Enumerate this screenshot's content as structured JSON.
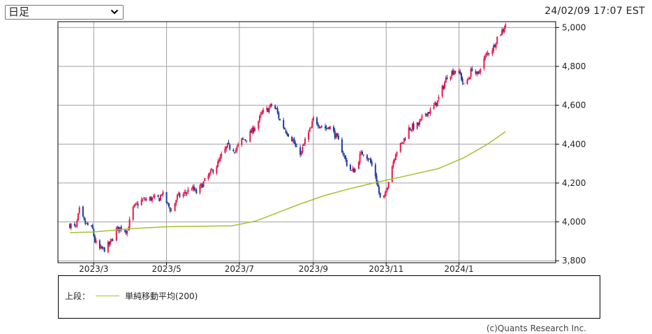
{
  "controls": {
    "period_select": {
      "value": "日足",
      "icon": "chevron-down-icon"
    }
  },
  "timestamp": "24/02/09 17:07 EST",
  "credit": "(c)Quants Research Inc.",
  "legend": {
    "section_label": "上段：",
    "ma_label": "単純移動平均(200)"
  },
  "colors": {
    "up": "#e8194b",
    "down": "#1c3d9c",
    "ma": "#a3c231",
    "grid": "#a0a0a0",
    "frame": "#000000"
  },
  "chart_data": {
    "type": "candlestick",
    "x_tick_labels": [
      "2023/3",
      "2023/5",
      "2023/7",
      "2023/9",
      "2023/11",
      "2024/1"
    ],
    "y_tick_labels": [
      "3,800",
      "4,000",
      "4,200",
      "4,400",
      "4,600",
      "4,800",
      "5,000"
    ],
    "y_ticks": [
      3800,
      4000,
      4200,
      4400,
      4600,
      4800,
      5000
    ],
    "ylim": [
      3790,
      5030
    ],
    "xlim": [
      "2023-01-30",
      "2024-03-22"
    ],
    "grid": true,
    "close_path": [
      [
        "2023-02-09",
        3985
      ],
      [
        "2023-02-14",
        3970
      ],
      [
        "2023-02-17",
        4060
      ],
      [
        "2023-02-21",
        3998
      ],
      [
        "2023-02-28",
        3960
      ],
      [
        "2023-03-02",
        3900
      ],
      [
        "2023-03-06",
        3860
      ],
      [
        "2023-03-10",
        3860
      ],
      [
        "2023-03-13",
        3880
      ],
      [
        "2023-03-15",
        3890
      ],
      [
        "2023-03-20",
        3960
      ],
      [
        "2023-03-24",
        3970
      ],
      [
        "2023-03-29",
        3955
      ],
      [
        "2023-04-03",
        4070
      ],
      [
        "2023-04-10",
        4110
      ],
      [
        "2023-04-18",
        4120
      ],
      [
        "2023-04-25",
        4120
      ],
      [
        "2023-04-27",
        4150
      ],
      [
        "2023-05-01",
        4100
      ],
      [
        "2023-05-05",
        4055
      ],
      [
        "2023-05-10",
        4130
      ],
      [
        "2023-05-15",
        4140
      ],
      [
        "2023-05-22",
        4175
      ],
      [
        "2023-05-26",
        4150
      ],
      [
        "2023-06-02",
        4210
      ],
      [
        "2023-06-08",
        4260
      ],
      [
        "2023-06-13",
        4300
      ],
      [
        "2023-06-16",
        4340
      ],
      [
        "2023-06-21",
        4390
      ],
      [
        "2023-06-28",
        4370
      ],
      [
        "2023-07-03",
        4420
      ],
      [
        "2023-07-07",
        4430
      ],
      [
        "2023-07-12",
        4470
      ],
      [
        "2023-07-17",
        4520
      ],
      [
        "2023-07-20",
        4560
      ],
      [
        "2023-07-25",
        4580
      ],
      [
        "2023-07-28",
        4600
      ],
      [
        "2023-08-01",
        4575
      ],
      [
        "2023-08-04",
        4520
      ],
      [
        "2023-08-09",
        4470
      ],
      [
        "2023-08-15",
        4420
      ],
      [
        "2023-08-18",
        4370
      ],
      [
        "2023-08-22",
        4355
      ],
      [
        "2023-08-25",
        4420
      ],
      [
        "2023-08-30",
        4480
      ],
      [
        "2023-09-01",
        4530
      ],
      [
        "2023-09-06",
        4500
      ],
      [
        "2023-09-12",
        4480
      ],
      [
        "2023-09-14",
        4495
      ],
      [
        "2023-09-20",
        4440
      ],
      [
        "2023-09-25",
        4370
      ],
      [
        "2023-09-29",
        4300
      ],
      [
        "2023-10-03",
        4260
      ],
      [
        "2023-10-06",
        4270
      ],
      [
        "2023-10-10",
        4340
      ],
      [
        "2023-10-13",
        4360
      ],
      [
        "2023-10-18",
        4320
      ],
      [
        "2023-10-23",
        4240
      ],
      [
        "2023-10-27",
        4120
      ],
      [
        "2023-10-31",
        4130
      ],
      [
        "2023-11-03",
        4220
      ],
      [
        "2023-11-09",
        4360
      ],
      [
        "2023-11-14",
        4400
      ],
      [
        "2023-11-20",
        4480
      ],
      [
        "2023-11-28",
        4500
      ],
      [
        "2023-12-04",
        4560
      ],
      [
        "2023-12-08",
        4570
      ],
      [
        "2023-12-14",
        4620
      ],
      [
        "2023-12-19",
        4700
      ],
      [
        "2023-12-22",
        4750
      ],
      [
        "2023-12-28",
        4780
      ],
      [
        "2024-01-02",
        4760
      ],
      [
        "2024-01-05",
        4700
      ],
      [
        "2024-01-09",
        4740
      ],
      [
        "2024-01-12",
        4790
      ],
      [
        "2024-01-17",
        4750
      ],
      [
        "2024-01-19",
        4800
      ],
      [
        "2024-01-24",
        4860
      ],
      [
        "2024-01-30",
        4900
      ],
      [
        "2024-02-02",
        4950
      ],
      [
        "2024-02-07",
        4990
      ],
      [
        "2024-02-09",
        5020
      ]
    ],
    "series": [
      {
        "name": "単純移動平均(200)",
        "kind": "line",
        "points": [
          [
            "2023-02-09",
            3945
          ],
          [
            "2023-03-01",
            3948
          ],
          [
            "2023-04-01",
            3965
          ],
          [
            "2023-05-01",
            3975
          ],
          [
            "2023-06-01",
            3978
          ],
          [
            "2023-06-25",
            3980
          ],
          [
            "2023-07-15",
            4005
          ],
          [
            "2023-08-01",
            4045
          ],
          [
            "2023-08-20",
            4090
          ],
          [
            "2023-09-10",
            4135
          ],
          [
            "2023-10-01",
            4170
          ],
          [
            "2023-10-25",
            4205
          ],
          [
            "2023-11-20",
            4240
          ],
          [
            "2023-12-15",
            4275
          ],
          [
            "2024-01-05",
            4330
          ],
          [
            "2024-01-25",
            4400
          ],
          [
            "2024-02-09",
            4465
          ]
        ]
      }
    ]
  }
}
